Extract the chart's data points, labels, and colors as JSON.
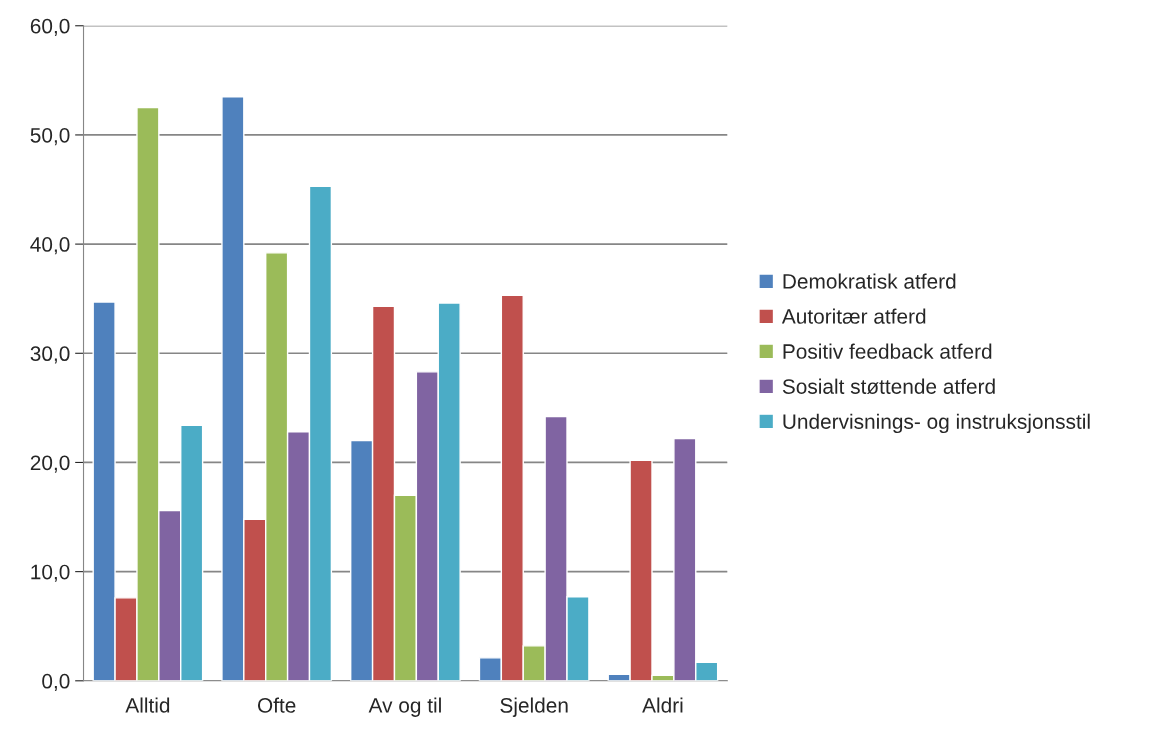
{
  "chart_data": {
    "type": "bar",
    "categories": [
      "Alltid",
      "Ofte",
      "Av og til",
      "Sjelden",
      "Aldri"
    ],
    "series": [
      {
        "name": "Demokratisk atferd",
        "color": "#4f81bd",
        "values": [
          34.7,
          53.5,
          22.0,
          2.1,
          0.6
        ]
      },
      {
        "name": "Autoritær atferd",
        "color": "#c0504d",
        "values": [
          7.6,
          14.8,
          34.3,
          35.3,
          20.2
        ]
      },
      {
        "name": "Positiv feedback atferd",
        "color": "#9bbb59",
        "values": [
          52.5,
          39.2,
          17.0,
          3.2,
          0.5
        ]
      },
      {
        "name": "Sosialt støttende atferd",
        "color": "#8064a2",
        "values": [
          15.6,
          22.8,
          28.3,
          24.2,
          22.2
        ]
      },
      {
        "name": "Undervisnings- og instruksjonsstil",
        "color": "#4bacc6",
        "values": [
          23.4,
          45.3,
          34.6,
          7.7,
          1.7
        ]
      }
    ],
    "ylim": [
      0,
      60
    ],
    "yticks": [
      {
        "value": 0,
        "label": "0,0"
      },
      {
        "value": 10,
        "label": "10,0"
      },
      {
        "value": 20,
        "label": "20,0"
      },
      {
        "value": 30,
        "label": "30,0"
      },
      {
        "value": 40,
        "label": "40,0"
      },
      {
        "value": 50,
        "label": "50,0"
      },
      {
        "value": 60,
        "label": "60,0"
      }
    ],
    "grid": "y",
    "legend": "right"
  }
}
